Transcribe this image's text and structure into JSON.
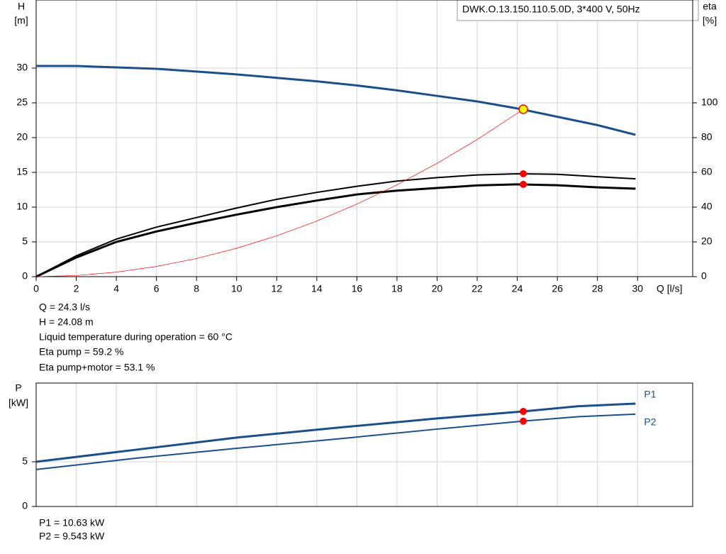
{
  "chart_data": [
    {
      "type": "line",
      "title": "DWK.O.13.150.110.5.0D, 3*400  V, 50Hz",
      "ylabel": "H",
      "yunit": "[m]",
      "y2label": "eta",
      "y2unit": "[%]",
      "xlabel": "Q [l/s]",
      "xlim": [
        0,
        32.75
      ],
      "xticks": [
        0,
        2,
        4,
        6,
        8,
        10,
        12,
        14,
        16,
        18,
        20,
        22,
        24,
        26,
        28,
        30
      ],
      "ylim": [
        0,
        40
      ],
      "yticks": [
        0,
        5,
        10,
        15,
        20,
        25,
        30
      ],
      "y2lim": [
        0,
        160
      ],
      "y2ticks": [
        0,
        20,
        40,
        60,
        80,
        100
      ],
      "grid": true,
      "series": [
        {
          "color": "#1b4f8a",
          "x": [
            0,
            2,
            4,
            6,
            8,
            10,
            12,
            14,
            16,
            18,
            20,
            22,
            24,
            26,
            28,
            29.9
          ],
          "values": [
            30.3,
            30.3,
            30.1,
            29.9,
            29.5,
            29.1,
            28.6,
            28.1,
            27.5,
            26.8,
            26.0,
            25.2,
            24.2,
            23.0,
            21.8,
            20.4
          ]
        },
        {
          "color": "#000000",
          "axis": "y2",
          "x": [
            0,
            2,
            4,
            6,
            8,
            10,
            12,
            14,
            16,
            18,
            20,
            22,
            24,
            26,
            28,
            29.9
          ],
          "values": [
            0,
            12,
            21.6,
            28.5,
            34,
            39.5,
            44.5,
            48.5,
            52,
            55,
            57,
            58.5,
            59.2,
            58.9,
            57.5,
            56.3
          ]
        },
        {
          "color": "#000000",
          "axis": "y2",
          "x": [
            0,
            2,
            4,
            6,
            8,
            10,
            12,
            14,
            16,
            18,
            20,
            22,
            24,
            26,
            28,
            29.9
          ],
          "values": [
            0,
            11,
            20,
            26,
            31,
            35.7,
            40,
            43.8,
            47.3,
            49.5,
            51,
            52.5,
            53.1,
            52.6,
            51.4,
            50.6
          ]
        },
        {
          "color": "#ff0000",
          "x": [
            0,
            2,
            4,
            6,
            8,
            10,
            12,
            14,
            16,
            18,
            20,
            22,
            24.3
          ],
          "values": [
            0,
            0.16,
            0.65,
            1.47,
            2.61,
            4.08,
            5.87,
            7.99,
            10.44,
            13.21,
            16.31,
            19.73,
            24.08
          ]
        }
      ],
      "duty_point": {
        "x": 24.3,
        "H": 24.08,
        "eta_pump": 59.2,
        "eta_total": 53.1
      }
    },
    {
      "type": "line",
      "ylabel": "P",
      "yunit": "[kW]",
      "xlim": [
        0,
        32.75
      ],
      "ylim": [
        0,
        13.8
      ],
      "yticks": [
        0,
        5
      ],
      "grid": true,
      "series": [
        {
          "name": "P1",
          "color": "#1b4f8a",
          "x": [
            0,
            5,
            10,
            15,
            20,
            24.3,
            27,
            29.9
          ],
          "values": [
            5.0,
            6.35,
            7.7,
            8.8,
            9.84,
            10.63,
            11.2,
            11.5
          ]
        },
        {
          "name": "P2",
          "color": "#1b4f8a",
          "x": [
            0,
            5,
            10,
            15,
            20,
            24.3,
            27,
            29.9
          ],
          "values": [
            4.13,
            5.4,
            6.5,
            7.54,
            8.65,
            9.543,
            10.03,
            10.32
          ]
        }
      ],
      "duty_point": {
        "x": 24.3,
        "P1": 10.63,
        "P2": 9.543
      }
    }
  ],
  "info": [
    "Q = 24.3 l/s",
    "H = 24.08 m",
    "Liquid temperature during operation = 60 °C",
    "Eta pump = 59.2 %",
    "Eta pump+motor = 53.1 %"
  ],
  "power_info": [
    "P1 = 10.63 kW",
    "P2 = 9.543 kW"
  ]
}
